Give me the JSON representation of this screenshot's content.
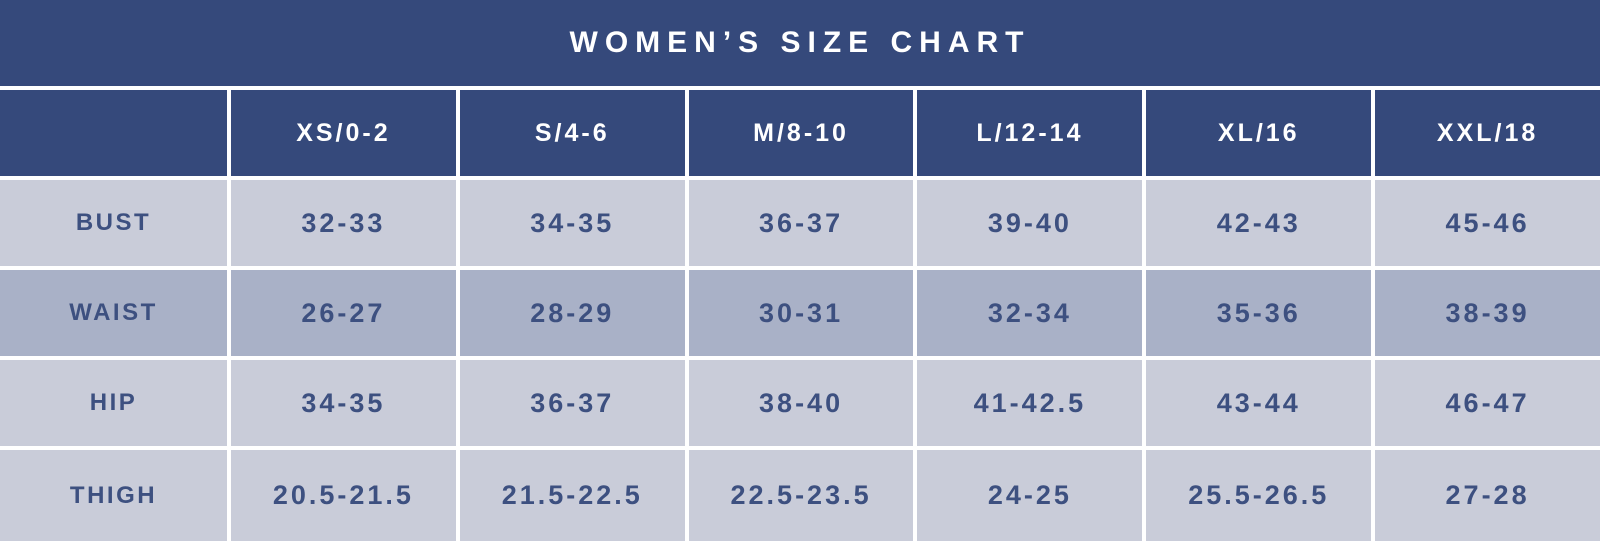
{
  "title": "WOMEN’S SIZE CHART",
  "chart_data": {
    "type": "table",
    "title": "WOMEN’S SIZE CHART",
    "columns": [
      "XS/0-2",
      "S/4-6",
      "M/8-10",
      "L/12-14",
      "XL/16",
      "XXL/18"
    ],
    "rows": [
      {
        "label": "BUST",
        "values": [
          "32-33",
          "34-35",
          "36-37",
          "39-40",
          "42-43",
          "45-46"
        ]
      },
      {
        "label": "WAIST",
        "values": [
          "26-27",
          "28-29",
          "30-31",
          "32-34",
          "35-36",
          "38-39"
        ]
      },
      {
        "label": "HIP",
        "values": [
          "34-35",
          "36-37",
          "38-40",
          "41-42.5",
          "43-44",
          "46-47"
        ]
      },
      {
        "label": "THIGH",
        "values": [
          "20.5-21.5",
          "21.5-22.5",
          "22.5-23.5",
          "24-25",
          "25.5-26.5",
          "27-28"
        ]
      }
    ],
    "layout": {
      "header_position": "top",
      "row_label_column": "left",
      "gridlines": "white"
    }
  },
  "colors": {
    "navy": "#35497B",
    "row-light": "#C9CCD9",
    "row-medium": "#A9B1C7",
    "cell-text": "#3D5080",
    "border": "#FFFFFF"
  }
}
